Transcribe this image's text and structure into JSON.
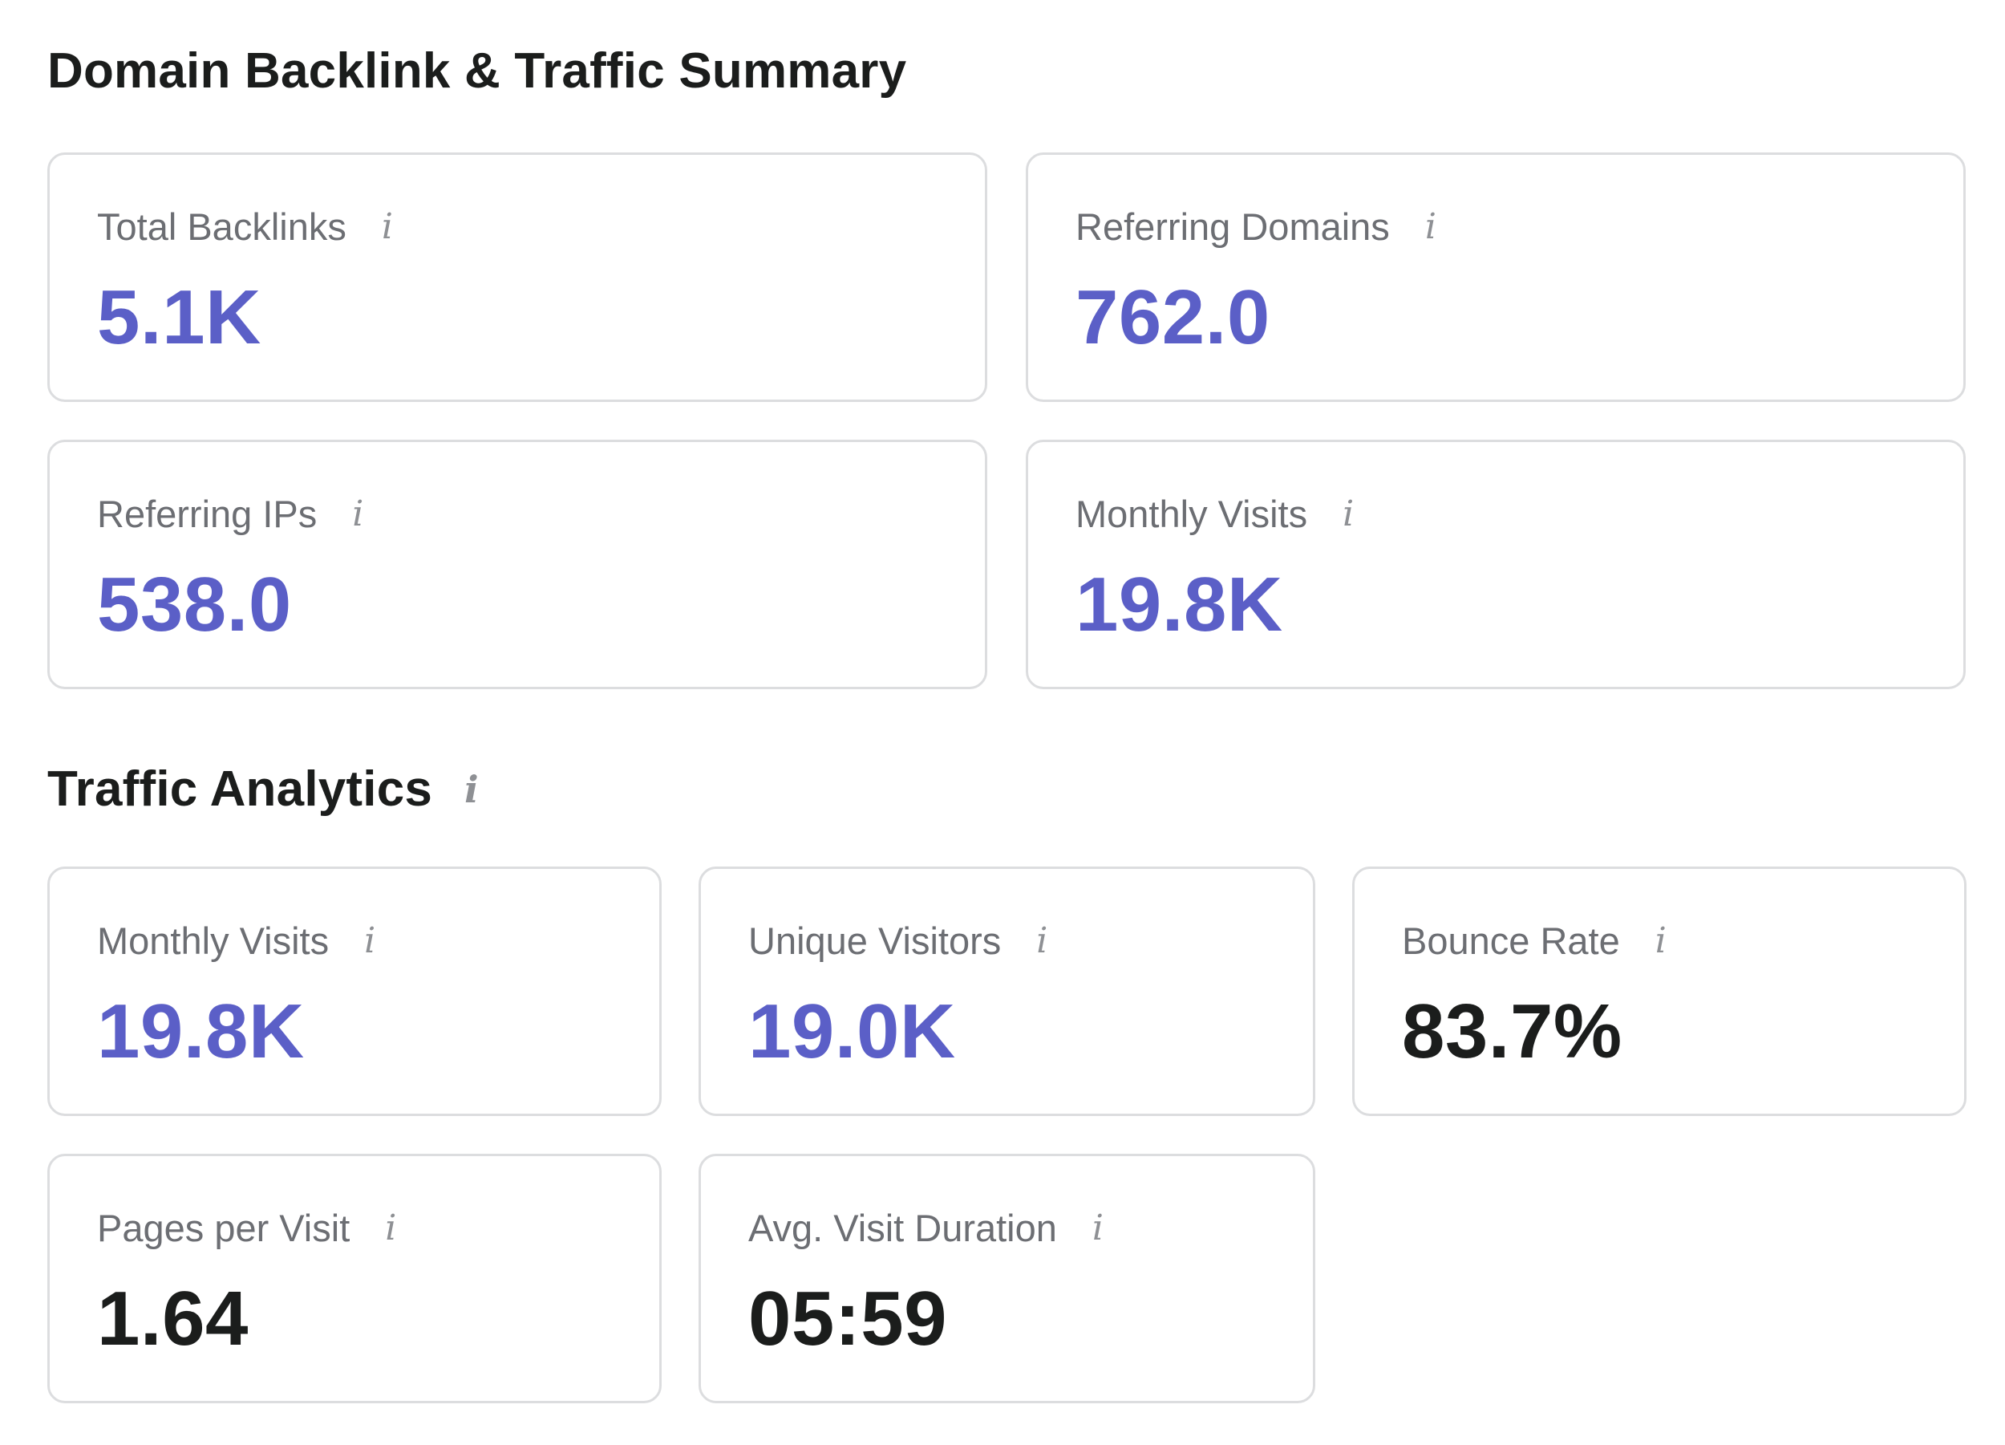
{
  "summary": {
    "title": "Domain Backlink & Traffic Summary",
    "cards": [
      {
        "label": "Total Backlinks",
        "value": "5.1K"
      },
      {
        "label": "Referring Domains",
        "value": "762.0"
      },
      {
        "label": "Referring IPs",
        "value": "538.0"
      },
      {
        "label": "Monthly Visits",
        "value": "19.8K"
      }
    ]
  },
  "analytics": {
    "title": "Traffic Analytics",
    "cards": [
      {
        "label": "Monthly Visits",
        "value": "19.8K"
      },
      {
        "label": "Unique Visitors",
        "value": "19.0K"
      },
      {
        "label": "Bounce Rate",
        "value": "83.7%"
      },
      {
        "label": "Pages per Visit",
        "value": "1.64"
      },
      {
        "label": "Avg. Visit Duration",
        "value": "05:59"
      }
    ]
  },
  "icons": {
    "info": "i"
  },
  "colors": {
    "accent_value": "#5b5fc7",
    "dark_value": "#1b1d1c",
    "label": "#6c6e73",
    "border": "#dcdddf"
  }
}
